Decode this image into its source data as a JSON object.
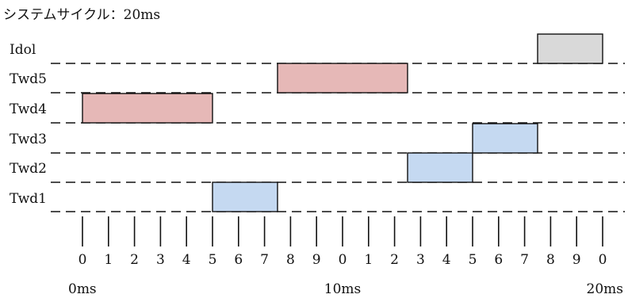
{
  "title": "システムサイクル：20ms",
  "rows": [
    {
      "label": "Idol"
    },
    {
      "label": "Twd5"
    },
    {
      "label": "Twd4"
    },
    {
      "label": "Twd3"
    },
    {
      "label": "Twd2"
    },
    {
      "label": "Twd1"
    }
  ],
  "tasks": [
    {
      "row": "Idol",
      "start": 17.5,
      "end": 20,
      "color": "#d9d9d9"
    },
    {
      "row": "Twd5",
      "start": 7.5,
      "end": 12.5,
      "color": "#e6b8b7"
    },
    {
      "row": "Twd4",
      "start": 0,
      "end": 5,
      "color": "#e6b8b7"
    },
    {
      "row": "Twd3",
      "start": 15,
      "end": 17.5,
      "color": "#c5d9f1"
    },
    {
      "row": "Twd2",
      "start": 12.5,
      "end": 15,
      "color": "#c5d9f1"
    },
    {
      "row": "Twd1",
      "start": 5,
      "end": 7.5,
      "color": "#c5d9f1"
    }
  ],
  "ticks": [
    "0",
    "1",
    "2",
    "3",
    "4",
    "5",
    "6",
    "7",
    "8",
    "9",
    "0",
    "1",
    "2",
    "3",
    "4",
    "5",
    "6",
    "7",
    "8",
    "9",
    "0"
  ],
  "time_labels": [
    {
      "label": "0ms",
      "at": 0
    },
    {
      "label": "10ms",
      "at": 10
    },
    {
      "label": "20ms",
      "at": 20
    }
  ]
}
